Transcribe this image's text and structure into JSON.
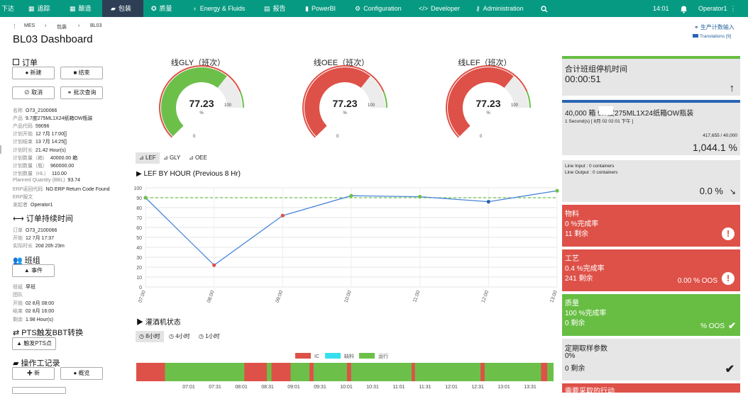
{
  "nav": {
    "items": [
      {
        "label": "下达",
        "icon": "",
        "active": false
      },
      {
        "label": "追踪",
        "icon": "table-icon",
        "active": false
      },
      {
        "label": "酿造",
        "icon": "table-icon",
        "active": false
      },
      {
        "label": "包装",
        "icon": "book-icon",
        "active": true
      },
      {
        "label": "质量",
        "icon": "badge-icon",
        "active": false
      },
      {
        "label": "Energy & Fluids",
        "icon": "bulb-icon",
        "active": false
      },
      {
        "label": "报告",
        "icon": "report-icon",
        "active": false
      },
      {
        "label": "PowerBI",
        "icon": "bar-chart-icon",
        "active": false
      },
      {
        "label": "Configuration",
        "icon": "cog-icon",
        "active": false
      },
      {
        "label": "Developer",
        "icon": "code-icon",
        "active": false
      },
      {
        "label": "Administration",
        "icon": "key-icon",
        "active": false
      }
    ],
    "time": "14:01",
    "user": "Operator1"
  },
  "breadcrumb": [
    "MES",
    "包装",
    "BL03"
  ],
  "page_title": "BL03 Dashboard",
  "top_links": {
    "production_count": "生产计数输入",
    "translations": "Translations [9]"
  },
  "order": {
    "title": "订单",
    "buttons": {
      "new": "新建",
      "finish": "结束",
      "cancel": "取消",
      "batch": "批次查询"
    },
    "fields": [
      {
        "k": "名称",
        "v": "O73_2100066"
      },
      {
        "k": "产品",
        "v": "9.7度275ML1X24纸箱OW瓶装"
      },
      {
        "k": "产品代码",
        "v": "59096"
      },
      {
        "k": "计划开始",
        "v": "12 7月 17:00[]"
      },
      {
        "k": "计划结束",
        "v": "13 7月 14:25[]"
      },
      {
        "k": "计划时长",
        "v": "21.42 Hour(s)"
      },
      {
        "k": "计划数量（箱）",
        "v": "40000.00 箱"
      },
      {
        "k": "计划数量（瓶）",
        "v": "960000.00"
      },
      {
        "k": "计划数量（HL）",
        "v": "110.00"
      },
      {
        "k": "Planned Quantity (BBL)",
        "v": "93.74"
      },
      {
        "k": "ERP返回代码",
        "v": "NO ERP Return Code Found"
      },
      {
        "k": "ERP报文",
        "v": ""
      },
      {
        "k": "发起者",
        "v": "Operator1"
      }
    ]
  },
  "duration": {
    "title": "订单持续时间",
    "fields": [
      {
        "k": "订单",
        "v": "O73_2100066"
      },
      {
        "k": "开始",
        "v": "12 7月 17:37"
      },
      {
        "k": "实际时长",
        "v": "20d 20h 23m"
      }
    ]
  },
  "shift": {
    "title": "班组",
    "event_button": "事件",
    "fields": [
      {
        "k": "班组",
        "v": "早班"
      },
      {
        "k": "团队",
        "v": ""
      },
      {
        "k": "开始",
        "v": "02 8月 08:00"
      },
      {
        "k": "结束",
        "v": "02 8月 16:00"
      },
      {
        "k": "剩余",
        "v": "1.98 Hour(s)"
      }
    ]
  },
  "pts": {
    "title": "PTS触发BBT转换",
    "button": "触发PTS点"
  },
  "worklog": {
    "title": "操作工记录",
    "new": "新",
    "overview": "概览"
  },
  "gauges": [
    {
      "title": "线GLY（班次）",
      "value": "77.23",
      "pct": "%",
      "min": "0",
      "max": "100",
      "color": "#6cc04a",
      "fraction": 0.7723
    },
    {
      "title": "线OEE（班次）",
      "value": "77.23",
      "pct": "%",
      "min": "0",
      "max": "100",
      "color": "#de5148",
      "fraction": 0.7723
    },
    {
      "title": "线LEF（班次）",
      "value": "77.23",
      "pct": "%",
      "min": "0",
      "max": "100",
      "color": "#de5148",
      "fraction": 0.7723
    }
  ],
  "chart_tabs": [
    "LEF",
    "GLY",
    "OEE"
  ],
  "chart_data": {
    "type": "line",
    "title": "LEF BY HOUR (Previous 8 Hr)",
    "x": [
      "07:00",
      "08:00",
      "09:00",
      "10:00",
      "11:00",
      "12:00",
      "13:00"
    ],
    "series": [
      {
        "values": [
          90,
          22,
          72,
          92,
          91,
          86,
          97
        ],
        "point_colors": [
          "#6cc04a",
          "#de5148",
          "#de5148",
          "#6cc04a",
          "#6cc04a",
          "#2a64b5",
          "#6cc04a"
        ]
      }
    ],
    "target": 90,
    "ylim": [
      0,
      100
    ],
    "yticks": [
      0,
      10,
      20,
      30,
      40,
      50,
      60,
      70,
      80,
      90,
      100
    ]
  },
  "filler": {
    "title": "灌酒机状态",
    "tabs": [
      "8小时",
      "4小时",
      "1小时"
    ],
    "legend": [
      {
        "label": "IC",
        "color": "#de5148"
      },
      {
        "label": "缺料",
        "color": "#35e0ee"
      },
      {
        "label": "运行",
        "color": "#6cc04a"
      }
    ],
    "segments": [
      {
        "state": "IC",
        "from": 0,
        "to": 0.069
      },
      {
        "state": "运行",
        "from": 0.069,
        "to": 0.259
      },
      {
        "state": "IC",
        "from": 0.259,
        "to": 0.281
      },
      {
        "state": "运行",
        "from": 0.281,
        "to": 0.28
      },
      {
        "state": "IC",
        "from": 0.265,
        "to": 0.313
      },
      {
        "state": "运行",
        "from": 0.313,
        "to": 0.324
      },
      {
        "state": "IC",
        "from": 0.324,
        "to": 0.37
      },
      {
        "state": "运行",
        "from": 0.37,
        "to": 0.415
      },
      {
        "state": "IC",
        "from": 0.415,
        "to": 0.425
      },
      {
        "state": "运行",
        "from": 0.425,
        "to": 0.505
      },
      {
        "state": "IC",
        "from": 0.505,
        "to": 0.515
      },
      {
        "state": "运行",
        "from": 0.515,
        "to": 0.66
      },
      {
        "state": "IC",
        "from": 0.66,
        "to": 0.668
      },
      {
        "state": "运行",
        "from": 0.668,
        "to": 0.825
      },
      {
        "state": "IC",
        "from": 0.825,
        "to": 0.835
      },
      {
        "state": "运行",
        "from": 0.835,
        "to": 0.97
      },
      {
        "state": "IC",
        "from": 0.97,
        "to": 0.985
      },
      {
        "state": "运行",
        "from": 0.985,
        "to": 1
      }
    ],
    "times": [
      "07:01",
      "07:31",
      "08:01",
      "08:31",
      "09:01",
      "09:31",
      "10:01",
      "10:31",
      "11:01",
      "11:31",
      "12:01",
      "12:31",
      "13:01",
      "13:31"
    ]
  },
  "cards": {
    "downtime": {
      "title": "合计班组停机时间",
      "value": "00:00:51"
    },
    "product": {
      "title": "40,000 箱    9.7度275ML1X24纸箱OW瓶装",
      "sub": "1 Second(s) [ 8月 02 02:01 下午 ]",
      "count": "417,655 / 40,000",
      "pct": "1,044.1 %"
    },
    "line": {
      "input": "Line Input : 0 containers",
      "output": "Line Output : 0 containers",
      "pct": "0.0 %"
    },
    "material": {
      "title": "物料",
      "rate": "0 %完成率",
      "remaining": "11 剩余"
    },
    "process": {
      "title": "工艺",
      "rate": "0.4 %完成率",
      "remaining": "241 剩余",
      "oos": "0.00 % OOS"
    },
    "quality": {
      "title": "质量",
      "rate": "100 %完成率",
      "remaining": "0 剩余",
      "oos": "% OOS"
    },
    "sampling": {
      "title": "定期取样参数",
      "rate": "0%",
      "remaining": "0 剩余"
    },
    "needs": {
      "title": "需要采取的行动"
    }
  }
}
